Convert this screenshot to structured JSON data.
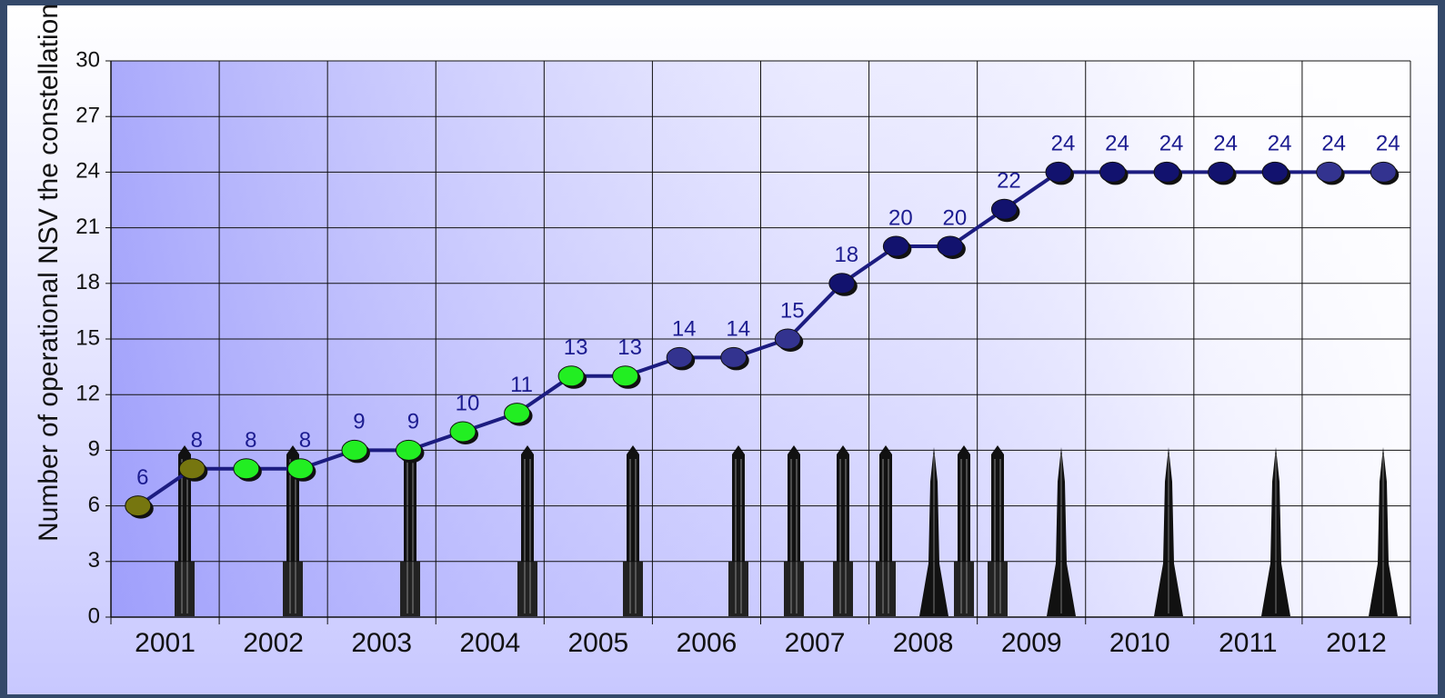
{
  "chart_data": {
    "type": "line",
    "y_label": "Number of operational NSV  the constellation",
    "x": [
      2000.75,
      2001.25,
      2001.75,
      2002.25,
      2002.75,
      2003.25,
      2003.75,
      2004.25,
      2004.75,
      2005.25,
      2005.75,
      2006.25,
      2006.75,
      2007.25,
      2007.75,
      2008.25,
      2008.75,
      2009.25,
      2009.75,
      2010.25,
      2010.75,
      2011.25,
      2011.75,
      2012.25
    ],
    "series": [
      {
        "name": "NSV",
        "color": "#1c1c80",
        "values": [
          6,
          8,
          8,
          8,
          9,
          9,
          10,
          11,
          13,
          13,
          14,
          14,
          15,
          18,
          20,
          20,
          22,
          24,
          24,
          24,
          24,
          24,
          24,
          24
        ],
        "point_colors": [
          "#76760f",
          "#76760f",
          "#22ee22",
          "#22ee22",
          "#22ee22",
          "#22ee22",
          "#22ee22",
          "#22ee22",
          "#22ee22",
          "#22ee22",
          "#33338f",
          "#33338f",
          "#33338f",
          "#12126e",
          "#12126e",
          "#12126e",
          "#12126e",
          "#12126e",
          "#12126e",
          "#12126e",
          "#12126e",
          "#12126e",
          "#33338f",
          "#33338f"
        ]
      }
    ],
    "xlim": [
      2000.5,
      2012.5
    ],
    "xticks": [
      2001,
      2002,
      2003,
      2004,
      2005,
      2006,
      2007,
      2008,
      2009,
      2010,
      2011,
      2012
    ],
    "ylim": [
      0,
      30
    ],
    "yticks": [
      0,
      3,
      6,
      9,
      12,
      15,
      18,
      21,
      24,
      27,
      30
    ],
    "grid": true
  }
}
